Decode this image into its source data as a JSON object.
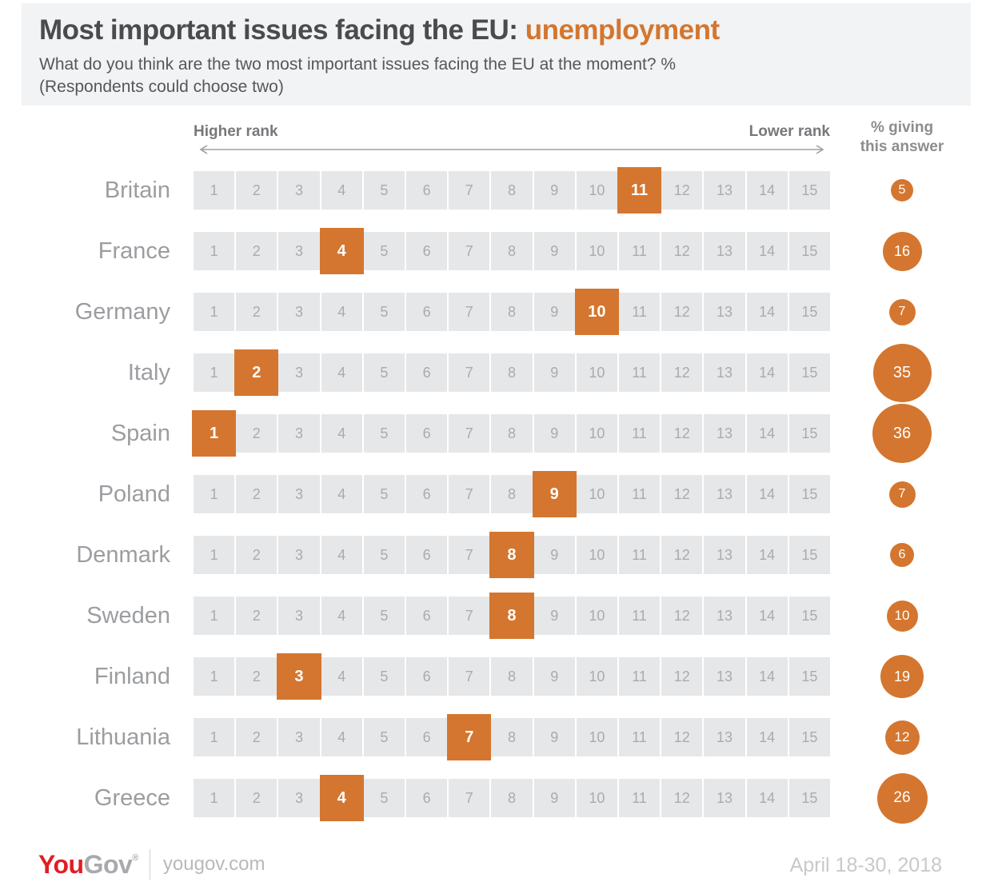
{
  "colors": {
    "accent": "#d4762f",
    "header_bg": "#f1f3f4",
    "title": "#4a4b4d",
    "subtitle": "#55575a",
    "axis_label": "#77787b",
    "arrow": "#9ea0a3",
    "value_header": "#8b8d8f",
    "country_label": "#9b9da0",
    "cell_bg": "#e6e7e8",
    "cell_text": "#a9abad",
    "logo_red": "#e21d25",
    "logo_gray": "#a8aaad",
    "footer_text": "#b7b9bb",
    "date_text": "#c7c9cb"
  },
  "header": {
    "title_main": "Most important issues facing the EU: ",
    "title_accent": "unemployment",
    "subtitle_line1": "What do you think are the two most important issues facing the EU at the moment? %",
    "subtitle_line2": "(Respondents could choose two)"
  },
  "axis": {
    "left_label": "Higher rank",
    "right_label": "Lower rank",
    "value_header_line1": "% giving",
    "value_header_line2": "this answer"
  },
  "chart_data": {
    "type": "heatmap",
    "title": "Most important issues facing the EU: unemployment",
    "subtitle": "What do you think are the two most important issues facing the EU at the moment? % (Respondents could choose two)",
    "xlabel_left": "Higher rank",
    "xlabel_right": "Lower rank",
    "value_label": "% giving this answer",
    "rank_min": 1,
    "rank_max": 15,
    "series": [
      {
        "country": "Britain",
        "rank": 11,
        "percent": 5
      },
      {
        "country": "France",
        "rank": 4,
        "percent": 16
      },
      {
        "country": "Germany",
        "rank": 10,
        "percent": 7
      },
      {
        "country": "Italy",
        "rank": 2,
        "percent": 35
      },
      {
        "country": "Spain",
        "rank": 1,
        "percent": 36
      },
      {
        "country": "Poland",
        "rank": 9,
        "percent": 7
      },
      {
        "country": "Denmark",
        "rank": 8,
        "percent": 6
      },
      {
        "country": "Sweden",
        "rank": 8,
        "percent": 10
      },
      {
        "country": "Finland",
        "rank": 3,
        "percent": 19
      },
      {
        "country": "Lithuania",
        "rank": 7,
        "percent": 12
      },
      {
        "country": "Greece",
        "rank": 4,
        "percent": 26
      }
    ]
  },
  "footer": {
    "logo_you": "You",
    "logo_gov": "Gov",
    "logo_mark": "®",
    "site": "yougov.com",
    "date": "April 18-30, 2018"
  }
}
